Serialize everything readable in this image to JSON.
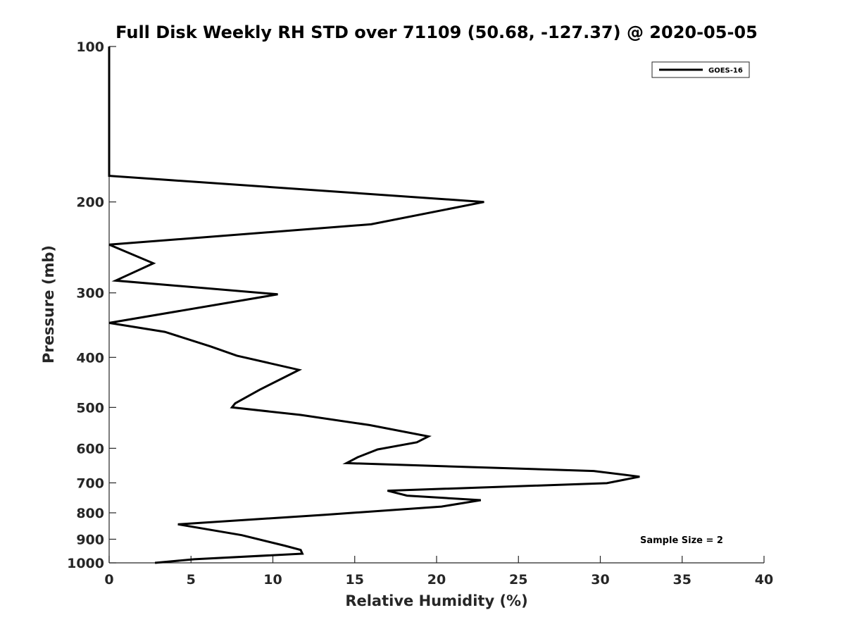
{
  "chart_data": {
    "type": "line",
    "title": "Full Disk Weekly RH STD over 71109 (50.68, -127.37) @ 2020-05-05",
    "xlabel": "Relative Humidity (%)",
    "ylabel": "Pressure (mb)",
    "xlim": [
      0,
      40
    ],
    "ylim": [
      100,
      1000
    ],
    "y_scale": "log",
    "y_reversed": true,
    "grid": false,
    "legend_position": "top-right",
    "x_ticks": [
      "0",
      "5",
      "10",
      "15",
      "20",
      "25",
      "30",
      "35",
      "40"
    ],
    "x_tick_values": [
      0,
      5,
      10,
      15,
      20,
      25,
      30,
      35,
      40
    ],
    "y_ticks": [
      "100",
      "200",
      "300",
      "400",
      "500",
      "600",
      "700",
      "800",
      "900",
      "1000"
    ],
    "y_tick_values": [
      100,
      200,
      300,
      400,
      500,
      600,
      700,
      800,
      900,
      1000
    ],
    "series": [
      {
        "name": "GOES-16",
        "color": "#000000",
        "points": [
          {
            "x": 0.0,
            "y": 100
          },
          {
            "x": 0.0,
            "y": 178
          },
          {
            "x": 22.9,
            "y": 200
          },
          {
            "x": 16.0,
            "y": 221
          },
          {
            "x": 0.0,
            "y": 242
          },
          {
            "x": 2.7,
            "y": 263
          },
          {
            "x": 0.4,
            "y": 284
          },
          {
            "x": 10.3,
            "y": 302
          },
          {
            "x": 0.0,
            "y": 343
          },
          {
            "x": 3.4,
            "y": 357
          },
          {
            "x": 6.2,
            "y": 381
          },
          {
            "x": 7.8,
            "y": 397
          },
          {
            "x": 11.6,
            "y": 423
          },
          {
            "x": 9.2,
            "y": 462
          },
          {
            "x": 7.7,
            "y": 491
          },
          {
            "x": 7.5,
            "y": 500
          },
          {
            "x": 11.7,
            "y": 517
          },
          {
            "x": 15.9,
            "y": 541
          },
          {
            "x": 19.5,
            "y": 569
          },
          {
            "x": 18.8,
            "y": 584
          },
          {
            "x": 16.4,
            "y": 603
          },
          {
            "x": 15.2,
            "y": 624
          },
          {
            "x": 14.5,
            "y": 641
          },
          {
            "x": 29.6,
            "y": 664
          },
          {
            "x": 32.4,
            "y": 681
          },
          {
            "x": 30.4,
            "y": 701
          },
          {
            "x": 17.0,
            "y": 725
          },
          {
            "x": 18.2,
            "y": 741
          },
          {
            "x": 22.7,
            "y": 756
          },
          {
            "x": 20.3,
            "y": 778
          },
          {
            "x": 13.2,
            "y": 807
          },
          {
            "x": 4.2,
            "y": 842
          },
          {
            "x": 8.1,
            "y": 884
          },
          {
            "x": 10.7,
            "y": 926
          },
          {
            "x": 11.7,
            "y": 944
          },
          {
            "x": 11.8,
            "y": 960
          },
          {
            "x": 5.2,
            "y": 984
          },
          {
            "x": 2.8,
            "y": 1000
          }
        ]
      }
    ],
    "annotations": [
      "Sample Size = 2"
    ]
  }
}
